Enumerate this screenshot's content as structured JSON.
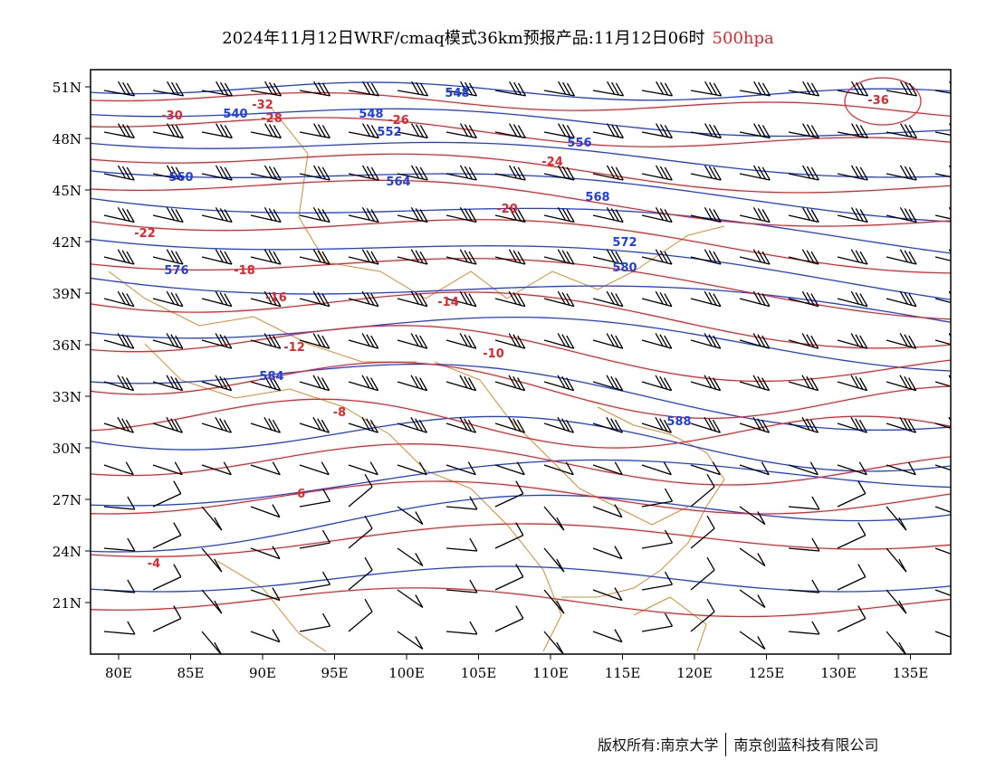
{
  "title": {
    "main": "2024年11月12日WRF/cmaq模式36km预报产品:11月12日06时",
    "level": "500hpa"
  },
  "footer": {
    "copyright": "版权所有:南京大学",
    "company": "南京创蓝科技有限公司"
  },
  "colors": {
    "height_contour": "#1f3fe0",
    "temperature_contour": "#e0282c",
    "wind_barb": "#000000",
    "boundary": "#d98a2b",
    "frame": "#000000"
  },
  "map": {
    "lon_range": [
      78,
      138
    ],
    "lat_range": [
      18,
      52
    ],
    "lat_ticks": [
      "51N",
      "48N",
      "45N",
      "42N",
      "39N",
      "36N",
      "33N",
      "30N",
      "27N",
      "24N",
      "21N"
    ],
    "lon_ticks": [
      "80E",
      "85E",
      "90E",
      "95E",
      "100E",
      "105E",
      "110E",
      "115E",
      "120E",
      "125E",
      "130E",
      "135E"
    ],
    "layers": [
      "geopotential-height-contours",
      "temperature-contours",
      "wind-barbs",
      "coastline-and-borders"
    ],
    "height_labels": [
      "548",
      "540",
      "548",
      "552",
      "556",
      "560",
      "564",
      "568",
      "572",
      "576",
      "580",
      "584",
      "588"
    ],
    "temperature_labels": [
      "-36",
      "-32",
      "-30",
      "-28",
      "-26",
      "-24",
      "-22",
      "-20",
      "-18",
      "-16",
      "-14",
      "-12",
      "-10",
      "-8",
      "-6",
      "-4"
    ]
  }
}
